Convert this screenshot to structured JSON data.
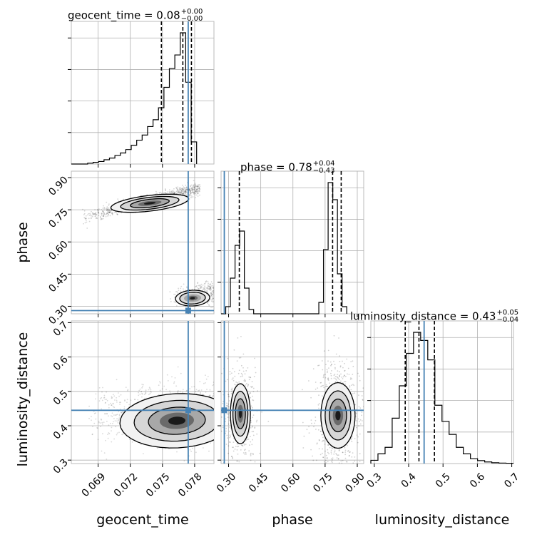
{
  "chart_data": {
    "type": "corner",
    "parameters": [
      "geocent_time",
      "phase",
      "luminosity_distance"
    ],
    "injection": {
      "geocent_time": 0.0774,
      "phase": 0.28,
      "luminosity_distance": 0.445
    },
    "axes": {
      "geocent_time": {
        "range": [
          0.0665,
          0.0798
        ],
        "ticks": [
          0.069,
          0.072,
          0.075,
          0.078
        ],
        "tick_labels": [
          "0.069",
          "0.072",
          "0.075",
          "0.078"
        ]
      },
      "phase": {
        "range": [
          0.265,
          0.93
        ],
        "ticks": [
          0.3,
          0.45,
          0.6,
          0.75,
          0.9
        ],
        "tick_labels": [
          "0.30",
          "0.45",
          "0.60",
          "0.75",
          "0.90"
        ]
      },
      "luminosity_distance": {
        "range": [
          0.29,
          0.705
        ],
        "ticks": [
          0.3,
          0.4,
          0.5,
          0.6,
          0.7
        ],
        "tick_labels": [
          "0.3",
          "0.4",
          "0.5",
          "0.6",
          "0.7"
        ]
      }
    },
    "titles": [
      {
        "param": "geocent_time",
        "label": "geocent_time = 0.08",
        "plus": "+0.00",
        "minus": "−0.00",
        "quantiles": [
          0.0749,
          0.0769,
          0.0777
        ]
      },
      {
        "param": "phase",
        "label": "phase = 0.78",
        "plus": "+0.04",
        "minus": "−0.43",
        "quantiles": [
          0.35,
          0.785,
          0.825
        ]
      },
      {
        "param": "luminosity_distance",
        "label": "luminosity_distance = 0.43",
        "plus": "+0.05",
        "minus": "−0.04",
        "quantiles": [
          0.39,
          0.43,
          0.475
        ]
      }
    ],
    "histograms": {
      "geocent_time": {
        "edges_start": 0.0665,
        "bin_width": 0.000508,
        "counts": [
          0.0,
          0.0,
          0.0,
          0.5,
          1,
          1.5,
          2.5,
          3.5,
          5,
          6.5,
          8.5,
          11,
          14,
          17,
          22,
          26,
          33,
          45,
          56,
          64,
          77,
          48,
          13
        ]
      },
      "phase": {
        "edges_start": 0.265,
        "bin_width": 0.0217,
        "counts": [
          0.0,
          5,
          25,
          48,
          58,
          18,
          3,
          0,
          0,
          0,
          0,
          0,
          0,
          0,
          0,
          0,
          0,
          0,
          0,
          0,
          0,
          8,
          45,
          92,
          80,
          28,
          5
        ]
      },
      "luminosity_distance": {
        "edges_start": 0.29,
        "bin_width": 0.0207,
        "counts": [
          2,
          6,
          10,
          28,
          48,
          68,
          81,
          76,
          64,
          36,
          26,
          18,
          10,
          6,
          3,
          1.8,
          1,
          0.5,
          0.3,
          0.2
        ]
      }
    },
    "grid": true
  }
}
